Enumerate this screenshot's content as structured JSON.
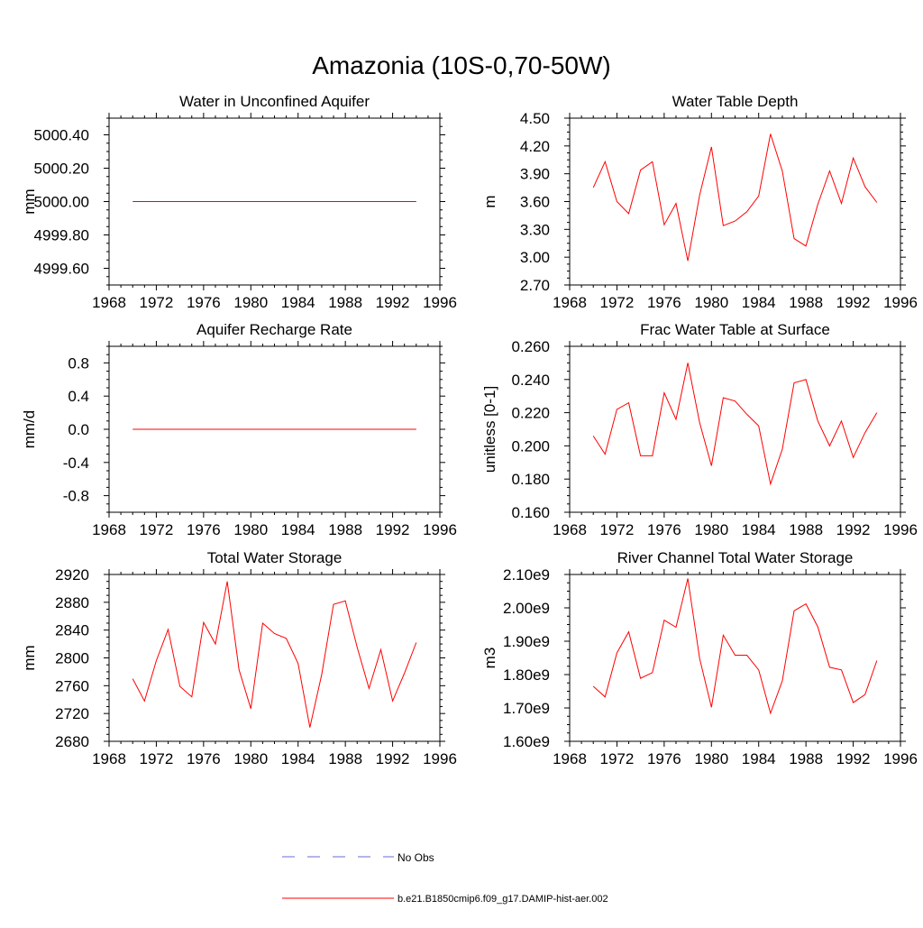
{
  "figure": {
    "title": "Amazonia (10S-0,70-50W)",
    "colors": {
      "series": "#ff0000",
      "obs": "#6b6bd6",
      "axis": "#000000"
    }
  },
  "legend": {
    "obs_label": "No Obs",
    "model_label": "b.e21.B1850cmip6.f09_g17.DAMIP-hist-aer.002"
  },
  "chart_data": [
    {
      "type": "line",
      "title": "Water in Unconfined Aquifer",
      "xlabel": "",
      "ylabel": "mm",
      "xlim": [
        1968,
        1996
      ],
      "ylim": [
        4999.5,
        5000.5
      ],
      "xticks": [
        1968,
        1972,
        1976,
        1980,
        1984,
        1988,
        1992,
        1996
      ],
      "yticks": [
        4999.6,
        4999.8,
        5000.0,
        5000.2,
        5000.4
      ],
      "ytick_labels": [
        "4999.60",
        "4999.80",
        "5000.00",
        "5000.20",
        "5000.40"
      ],
      "x": [
        1970,
        1971,
        1972,
        1973,
        1974,
        1975,
        1976,
        1977,
        1978,
        1979,
        1980,
        1981,
        1982,
        1983,
        1984,
        1985,
        1986,
        1987,
        1988,
        1989,
        1990,
        1991,
        1992,
        1993,
        1994
      ],
      "values": [
        5000,
        5000,
        5000,
        5000,
        5000,
        5000,
        5000,
        5000,
        5000,
        5000,
        5000,
        5000,
        5000,
        5000,
        5000,
        5000,
        5000,
        5000,
        5000,
        5000,
        5000,
        5000,
        5000,
        5000,
        5000
      ]
    },
    {
      "type": "line",
      "title": "Water Table Depth",
      "xlabel": "",
      "ylabel": "m",
      "xlim": [
        1968,
        1996
      ],
      "ylim": [
        2.7,
        4.5
      ],
      "xticks": [
        1968,
        1972,
        1976,
        1980,
        1984,
        1988,
        1992,
        1996
      ],
      "yticks": [
        2.7,
        3.0,
        3.3,
        3.6,
        3.9,
        4.2,
        4.5
      ],
      "ytick_labels": [
        "2.70",
        "3.00",
        "3.30",
        "3.60",
        "3.90",
        "4.20",
        "4.50"
      ],
      "x": [
        1970,
        1971,
        1972,
        1973,
        1974,
        1975,
        1976,
        1977,
        1978,
        1979,
        1980,
        1981,
        1982,
        1983,
        1984,
        1985,
        1986,
        1987,
        1988,
        1989,
        1990,
        1991,
        1992,
        1993,
        1994
      ],
      "values": [
        3.75,
        4.03,
        3.6,
        3.47,
        3.94,
        4.03,
        3.35,
        3.58,
        2.96,
        3.67,
        4.19,
        3.34,
        3.39,
        3.49,
        3.66,
        4.33,
        3.93,
        3.2,
        3.12,
        3.57,
        3.93,
        3.58,
        4.07,
        3.76,
        3.59
      ]
    },
    {
      "type": "line",
      "title": "Aquifer Recharge Rate",
      "xlabel": "",
      "ylabel": "mm/d",
      "xlim": [
        1968,
        1996
      ],
      "ylim": [
        -1.0,
        1.0
      ],
      "xticks": [
        1968,
        1972,
        1976,
        1980,
        1984,
        1988,
        1992,
        1996
      ],
      "yticks": [
        -0.8,
        -0.4,
        0.0,
        0.4,
        0.8
      ],
      "ytick_labels": [
        "-0.8",
        "-0.4",
        "0.0",
        "0.4",
        "0.8"
      ],
      "x": [
        1970,
        1971,
        1972,
        1973,
        1974,
        1975,
        1976,
        1977,
        1978,
        1979,
        1980,
        1981,
        1982,
        1983,
        1984,
        1985,
        1986,
        1987,
        1988,
        1989,
        1990,
        1991,
        1992,
        1993,
        1994
      ],
      "values": [
        0,
        0,
        0,
        0,
        0,
        0,
        0,
        0,
        0,
        0,
        0,
        0,
        0,
        0,
        0,
        0,
        0,
        0,
        0,
        0,
        0,
        0,
        0,
        0,
        0
      ]
    },
    {
      "type": "line",
      "title": "Frac Water Table at Surface",
      "xlabel": "",
      "ylabel": "unitless [0-1]",
      "xlim": [
        1968,
        1996
      ],
      "ylim": [
        0.16,
        0.26
      ],
      "xticks": [
        1968,
        1972,
        1976,
        1980,
        1984,
        1988,
        1992,
        1996
      ],
      "yticks": [
        0.16,
        0.18,
        0.2,
        0.22,
        0.24,
        0.26
      ],
      "ytick_labels": [
        "0.160",
        "0.180",
        "0.200",
        "0.220",
        "0.240",
        "0.260"
      ],
      "x": [
        1970,
        1971,
        1972,
        1973,
        1974,
        1975,
        1976,
        1977,
        1978,
        1979,
        1980,
        1981,
        1982,
        1983,
        1984,
        1985,
        1986,
        1987,
        1988,
        1989,
        1990,
        1991,
        1992,
        1993,
        1994
      ],
      "values": [
        0.206,
        0.195,
        0.222,
        0.226,
        0.194,
        0.194,
        0.232,
        0.216,
        0.25,
        0.214,
        0.188,
        0.229,
        0.227,
        0.219,
        0.212,
        0.177,
        0.198,
        0.238,
        0.24,
        0.215,
        0.2,
        0.215,
        0.193,
        0.208,
        0.22
      ]
    },
    {
      "type": "line",
      "title": "Total Water Storage",
      "xlabel": "",
      "ylabel": "mm",
      "xlim": [
        1968,
        1996
      ],
      "ylim": [
        2680,
        2920
      ],
      "xticks": [
        1968,
        1972,
        1976,
        1980,
        1984,
        1988,
        1992,
        1996
      ],
      "yticks": [
        2680,
        2720,
        2760,
        2800,
        2840,
        2880,
        2920
      ],
      "ytick_labels": [
        "2680",
        "2720",
        "2760",
        "2800",
        "2840",
        "2880",
        "2920"
      ],
      "x": [
        1970,
        1971,
        1972,
        1973,
        1974,
        1975,
        1976,
        1977,
        1978,
        1979,
        1980,
        1981,
        1982,
        1983,
        1984,
        1985,
        1986,
        1987,
        1988,
        1989,
        1990,
        1991,
        1992,
        1993,
        1994
      ],
      "values": [
        2770,
        2738,
        2796,
        2841,
        2759,
        2744,
        2851,
        2820,
        2910,
        2783,
        2727,
        2850,
        2835,
        2828,
        2792,
        2700,
        2776,
        2877,
        2882,
        2815,
        2756,
        2812,
        2738,
        2778,
        2822
      ]
    },
    {
      "type": "line",
      "title": "River Channel Total Water Storage",
      "xlabel": "",
      "ylabel": "m3",
      "xlim": [
        1968,
        1996
      ],
      "ylim": [
        1600000000.0,
        2100000000.0
      ],
      "xticks": [
        1968,
        1972,
        1976,
        1980,
        1984,
        1988,
        1992,
        1996
      ],
      "yticks": [
        1600000000.0,
        1700000000.0,
        1800000000.0,
        1900000000.0,
        2000000000.0,
        2100000000.0
      ],
      "ytick_labels": [
        "1.60e9",
        "1.70e9",
        "1.80e9",
        "1.90e9",
        "2.00e9",
        "2.10e9"
      ],
      "x": [
        1970,
        1971,
        1972,
        1973,
        1974,
        1975,
        1976,
        1977,
        1978,
        1979,
        1980,
        1981,
        1982,
        1983,
        1984,
        1985,
        1986,
        1987,
        1988,
        1989,
        1990,
        1991,
        1992,
        1993,
        1994
      ],
      "values": [
        1765000000.0,
        1733000000.0,
        1865000000.0,
        1928000000.0,
        1789000000.0,
        1806000000.0,
        1963000000.0,
        1942000000.0,
        2088000000.0,
        1848000000.0,
        1702000000.0,
        1918000000.0,
        1858000000.0,
        1858000000.0,
        1814000000.0,
        1684000000.0,
        1781000000.0,
        1991000000.0,
        2012000000.0,
        1943000000.0,
        1822000000.0,
        1814000000.0,
        1716000000.0,
        1740000000.0,
        1842000000.0
      ]
    }
  ]
}
